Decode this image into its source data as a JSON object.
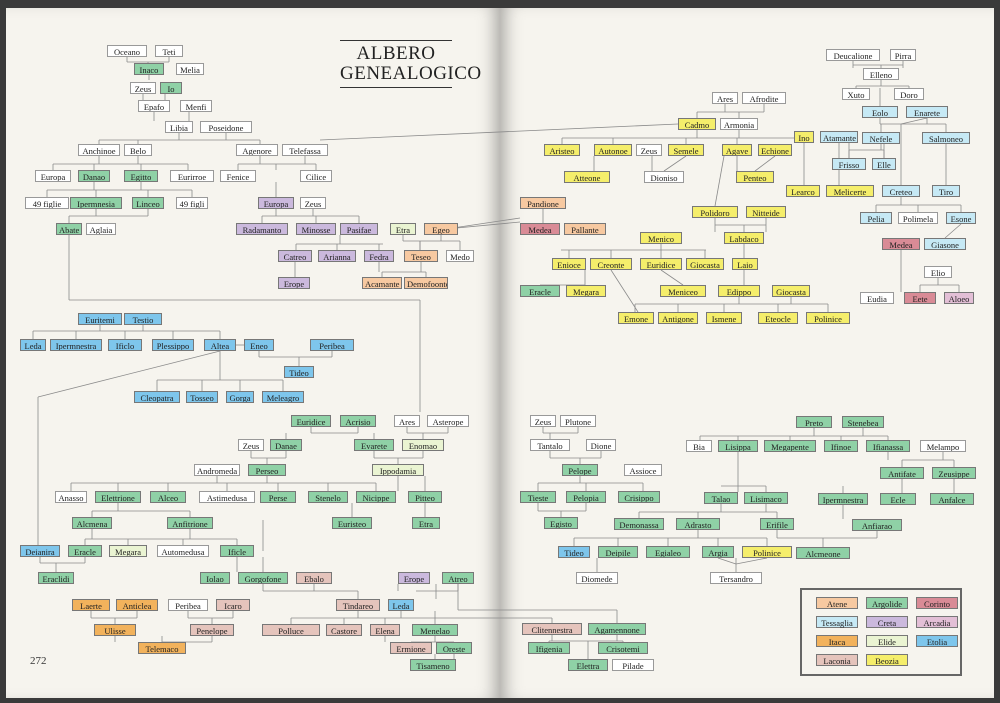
{
  "title_line1": "ALBERO",
  "title_line2": "GENEALOGICO",
  "page_number": "272",
  "colors": {
    "Atene": "#f7c9a1",
    "Argolide": "#8fd1a6",
    "Corinto": "#d98b96",
    "Tessaglia": "#c6e9f5",
    "Creta": "#cbb9dd",
    "Arcadia": "#e3bfd6",
    "Itaca": "#f2b25c",
    "Elide": "#eaf4d2",
    "Etolia": "#7ec6ec",
    "Laconia": "#e5c4bc",
    "Beozia": "#f5ee6b",
    "none": "#ffffff"
  },
  "legend": [
    {
      "label": "Atene",
      "region": "Atene"
    },
    {
      "label": "Argolide",
      "region": "Argolide"
    },
    {
      "label": "Corinto",
      "region": "Corinto"
    },
    {
      "label": "Tessaglia",
      "region": "Tessaglia"
    },
    {
      "label": "Creta",
      "region": "Creta"
    },
    {
      "label": "Arcadia",
      "region": "Arcadia"
    },
    {
      "label": "Itaca",
      "region": "Itaca"
    },
    {
      "label": "Elide",
      "region": "Elide"
    },
    {
      "label": "Etolia",
      "region": "Etolia"
    },
    {
      "label": "Laconia",
      "region": "Laconia"
    },
    {
      "label": "Beozia",
      "region": "Beozia"
    }
  ],
  "nodes": [
    {
      "id": "oceano",
      "label": "Oceano",
      "region": "none"
    },
    {
      "id": "teti",
      "label": "Teti",
      "region": "none"
    },
    {
      "id": "inaco",
      "label": "Inaco",
      "region": "Argolide"
    },
    {
      "id": "melia",
      "label": "Melia",
      "region": "none"
    },
    {
      "id": "zeus1",
      "label": "Zeus",
      "region": "none"
    },
    {
      "id": "io",
      "label": "Io",
      "region": "Argolide"
    },
    {
      "id": "epafo",
      "label": "Epafo",
      "region": "none"
    },
    {
      "id": "menfi",
      "label": "Menfi",
      "region": "none"
    },
    {
      "id": "libia",
      "label": "Libia",
      "region": "none"
    },
    {
      "id": "poseidone",
      "label": "Poseidone",
      "region": "none"
    },
    {
      "id": "anchinoe",
      "label": "Anchinoe",
      "region": "none"
    },
    {
      "id": "belo",
      "label": "Belo",
      "region": "none"
    },
    {
      "id": "agenore",
      "label": "Agenore",
      "region": "none"
    },
    {
      "id": "telefassa",
      "label": "Telefassa",
      "region": "none"
    },
    {
      "id": "europa1",
      "label": "Europa",
      "region": "none"
    },
    {
      "id": "danao",
      "label": "Danao",
      "region": "Argolide"
    },
    {
      "id": "egitto",
      "label": "Egitto",
      "region": "Argolide"
    },
    {
      "id": "eurirroe",
      "label": "Eurirroe",
      "region": "none"
    },
    {
      "id": "fenice",
      "label": "Fenice",
      "region": "none"
    },
    {
      "id": "cilice",
      "label": "Cilice",
      "region": "none"
    },
    {
      "id": "figlie49",
      "label": "49 figlie",
      "region": "none"
    },
    {
      "id": "ipermnesia",
      "label": "Ipermnesia",
      "region": "Argolide"
    },
    {
      "id": "linceo",
      "label": "Linceo",
      "region": "Argolide"
    },
    {
      "id": "figli49",
      "label": "49 figli",
      "region": "none"
    },
    {
      "id": "europa2",
      "label": "Europa",
      "region": "Creta"
    },
    {
      "id": "zeus2",
      "label": "Zeus",
      "region": "none"
    },
    {
      "id": "abate",
      "label": "Abate",
      "region": "Argolide"
    },
    {
      "id": "aglaia",
      "label": "Aglaia",
      "region": "none"
    },
    {
      "id": "radamanto",
      "label": "Radamanto",
      "region": "Creta"
    },
    {
      "id": "minosse",
      "label": "Minosse",
      "region": "Creta"
    },
    {
      "id": "pasifae",
      "label": "Pasifae",
      "region": "Creta"
    },
    {
      "id": "etra",
      "label": "Etra",
      "region": "Elide"
    },
    {
      "id": "egeo",
      "label": "Egeo",
      "region": "Atene"
    },
    {
      "id": "catreo",
      "label": "Catreo",
      "region": "Creta"
    },
    {
      "id": "arianna",
      "label": "Arianna",
      "region": "Creta"
    },
    {
      "id": "fedra",
      "label": "Fedra",
      "region": "Creta"
    },
    {
      "id": "teseo",
      "label": "Teseo",
      "region": "Atene"
    },
    {
      "id": "medo",
      "label": "Medo",
      "region": "none"
    },
    {
      "id": "erope1",
      "label": "Erope",
      "region": "Creta"
    },
    {
      "id": "acamante",
      "label": "Acamante",
      "region": "Atene"
    },
    {
      "id": "demofoonte",
      "label": "Demofoonte",
      "region": "Atene"
    },
    {
      "id": "euritemi",
      "label": "Euritemi",
      "region": "Etolia"
    },
    {
      "id": "testio",
      "label": "Testio",
      "region": "Etolia"
    },
    {
      "id": "leda1",
      "label": "Leda",
      "region": "Etolia"
    },
    {
      "id": "ipermnestra1",
      "label": "Ipermnestra",
      "region": "Etolia"
    },
    {
      "id": "ificlo",
      "label": "Ificlo",
      "region": "Etolia"
    },
    {
      "id": "plessippo",
      "label": "Plessippo",
      "region": "Etolia"
    },
    {
      "id": "altea",
      "label": "Altea",
      "region": "Etolia"
    },
    {
      "id": "eneo",
      "label": "Eneo",
      "region": "Etolia"
    },
    {
      "id": "peribea1",
      "label": "Peribea",
      "region": "Etolia"
    },
    {
      "id": "tideo1",
      "label": "Tideo",
      "region": "Etolia"
    },
    {
      "id": "cleopatra",
      "label": "Cleopatra",
      "region": "Etolia"
    },
    {
      "id": "tosseo",
      "label": "Tosseo",
      "region": "Etolia"
    },
    {
      "id": "gorga",
      "label": "Gorga",
      "region": "Etolia"
    },
    {
      "id": "meleagro",
      "label": "Meleagro",
      "region": "Etolia"
    },
    {
      "id": "euridice1",
      "label": "Euridice",
      "region": "Argolide"
    },
    {
      "id": "acrisio",
      "label": "Acrisio",
      "region": "Argolide"
    },
    {
      "id": "ares2",
      "label": "Ares",
      "region": "none"
    },
    {
      "id": "asterope",
      "label": "Asterope",
      "region": "none"
    },
    {
      "id": "zeus3",
      "label": "Zeus",
      "region": "none"
    },
    {
      "id": "danae",
      "label": "Danae",
      "region": "Argolide"
    },
    {
      "id": "evarete",
      "label": "Evarete",
      "region": "Argolide"
    },
    {
      "id": "enomao",
      "label": "Enomao",
      "region": "Elide"
    },
    {
      "id": "andromeda",
      "label": "Andromeda",
      "region": "none"
    },
    {
      "id": "perseo",
      "label": "Perseo",
      "region": "Argolide"
    },
    {
      "id": "ippodamia",
      "label": "Ippodamia",
      "region": "Elide"
    },
    {
      "id": "anasso",
      "label": "Anasso",
      "region": "none"
    },
    {
      "id": "elettrione",
      "label": "Elettrione",
      "region": "Argolide"
    },
    {
      "id": "alceo",
      "label": "Alceo",
      "region": "Argolide"
    },
    {
      "id": "astimedusa",
      "label": "Astimedusa",
      "region": "none"
    },
    {
      "id": "perse",
      "label": "Perse",
      "region": "Argolide"
    },
    {
      "id": "stenelo",
      "label": "Stenelo",
      "region": "Argolide"
    },
    {
      "id": "nicippe",
      "label": "Nicippe",
      "region": "Argolide"
    },
    {
      "id": "pitteo",
      "label": "Pitteo",
      "region": "Argolide"
    },
    {
      "id": "alcmena",
      "label": "Alcmena",
      "region": "Argolide"
    },
    {
      "id": "anfitrione",
      "label": "Anfitrione",
      "region": "Argolide"
    },
    {
      "id": "euristeo",
      "label": "Euristeo",
      "region": "Argolide"
    },
    {
      "id": "etra2",
      "label": "Etra",
      "region": "Argolide"
    },
    {
      "id": "deianira",
      "label": "Deianira",
      "region": "Etolia"
    },
    {
      "id": "eracle1",
      "label": "Eracle",
      "region": "Argolide"
    },
    {
      "id": "megara1",
      "label": "Megara",
      "region": "Elide"
    },
    {
      "id": "automedusa",
      "label": "Automedusa",
      "region": "none"
    },
    {
      "id": "ificle",
      "label": "Ificle",
      "region": "Argolide"
    },
    {
      "id": "eraclidi",
      "label": "Eraclidi",
      "region": "Argolide"
    },
    {
      "id": "iolao",
      "label": "Iolao",
      "region": "Argolide"
    },
    {
      "id": "gorgofone",
      "label": "Gorgofone",
      "region": "Argolide"
    },
    {
      "id": "ebalo",
      "label": "Ebalo",
      "region": "Laconia"
    },
    {
      "id": "erope2",
      "label": "Erope",
      "region": "Creta"
    },
    {
      "id": "atreo",
      "label": "Atreo",
      "region": "Argolide"
    },
    {
      "id": "laerte",
      "label": "Laerte",
      "region": "Itaca"
    },
    {
      "id": "anticlea",
      "label": "Anticlea",
      "region": "Itaca"
    },
    {
      "id": "peribea2",
      "label": "Peribea",
      "region": "none"
    },
    {
      "id": "icaro",
      "label": "Icaro",
      "region": "Laconia"
    },
    {
      "id": "tindareo",
      "label": "Tindareo",
      "region": "Laconia"
    },
    {
      "id": "leda2",
      "label": "Leda",
      "region": "Etolia"
    },
    {
      "id": "ulisse",
      "label": "Ulisse",
      "region": "Itaca"
    },
    {
      "id": "penelope",
      "label": "Penelope",
      "region": "Laconia"
    },
    {
      "id": "polluce",
      "label": "Polluce",
      "region": "Laconia"
    },
    {
      "id": "castore",
      "label": "Castore",
      "region": "Laconia"
    },
    {
      "id": "elena",
      "label": "Elena",
      "region": "Laconia"
    },
    {
      "id": "menelao",
      "label": "Menelao",
      "region": "Argolide"
    },
    {
      "id": "telemaco",
      "label": "Telemaco",
      "region": "Itaca"
    },
    {
      "id": "ermione",
      "label": "Ermione",
      "region": "Laconia"
    },
    {
      "id": "oreste",
      "label": "Oreste",
      "region": "Argolide"
    },
    {
      "id": "tisameno",
      "label": "Tisameno",
      "region": "Argolide"
    },
    {
      "id": "clitennestra",
      "label": "Clitennestra",
      "region": "Laconia"
    },
    {
      "id": "agamennone",
      "label": "Agamennone",
      "region": "Argolide"
    },
    {
      "id": "ifigenia",
      "label": "Ifigenia",
      "region": "Argolide"
    },
    {
      "id": "crisotemi",
      "label": "Crisotemi",
      "region": "Argolide"
    },
    {
      "id": "elettra",
      "label": "Elettra",
      "region": "Argolide"
    },
    {
      "id": "pilade",
      "label": "Pilade",
      "region": "none"
    },
    {
      "id": "ares1",
      "label": "Ares",
      "region": "none"
    },
    {
      "id": "afrodite",
      "label": "Afrodite",
      "region": "none"
    },
    {
      "id": "cadmo",
      "label": "Cadmo",
      "region": "Beozia"
    },
    {
      "id": "armonia",
      "label": "Armonia",
      "region": "none"
    },
    {
      "id": "aristeo",
      "label": "Aristeo",
      "region": "Beozia"
    },
    {
      "id": "autonoe",
      "label": "Autonoe",
      "region": "Beozia"
    },
    {
      "id": "zeus4",
      "label": "Zeus",
      "region": "none"
    },
    {
      "id": "semele",
      "label": "Semele",
      "region": "Beozia"
    },
    {
      "id": "agave",
      "label": "Agave",
      "region": "Beozia"
    },
    {
      "id": "echione",
      "label": "Echione",
      "region": "Beozia"
    },
    {
      "id": "ino",
      "label": "Ino",
      "region": "Beozia"
    },
    {
      "id": "atamante",
      "label": "Atamante",
      "region": "Tessaglia"
    },
    {
      "id": "atteone",
      "label": "Atteone",
      "region": "Beozia"
    },
    {
      "id": "dioniso",
      "label": "Dioniso",
      "region": "none"
    },
    {
      "id": "penteo",
      "label": "Penteo",
      "region": "Beozia"
    },
    {
      "id": "learco",
      "label": "Learco",
      "region": "Beozia"
    },
    {
      "id": "melicerte",
      "label": "Melicerte",
      "region": "Beozia"
    },
    {
      "id": "pandione",
      "label": "Pandione",
      "region": "Atene"
    },
    {
      "id": "polidoro",
      "label": "Polidoro",
      "region": "Beozia"
    },
    {
      "id": "nitteide",
      "label": "Nitteide",
      "region": "Beozia"
    },
    {
      "id": "medea1",
      "label": "Medea",
      "region": "Corinto"
    },
    {
      "id": "pallante",
      "label": "Pallante",
      "region": "Atene"
    },
    {
      "id": "labdaco",
      "label": "Labdaco",
      "region": "Beozia"
    },
    {
      "id": "menico",
      "label": "Menico",
      "region": "Beozia"
    },
    {
      "id": "enioce",
      "label": "Enioce",
      "region": "Beozia"
    },
    {
      "id": "creonte",
      "label": "Creonte",
      "region": "Beozia"
    },
    {
      "id": "euridice2",
      "label": "Euridice",
      "region": "Beozia"
    },
    {
      "id": "giocasta1",
      "label": "Giocasta",
      "region": "Beozia"
    },
    {
      "id": "laio",
      "label": "Laio",
      "region": "Beozia"
    },
    {
      "id": "eracle2",
      "label": "Eracle",
      "region": "Argolide"
    },
    {
      "id": "megara2",
      "label": "Megara",
      "region": "Beozia"
    },
    {
      "id": "meniceo",
      "label": "Meniceo",
      "region": "Beozia"
    },
    {
      "id": "edippo",
      "label": "Edippo",
      "region": "Beozia"
    },
    {
      "id": "giocasta2",
      "label": "Giocasta",
      "region": "Beozia"
    },
    {
      "id": "emone",
      "label": "Emone",
      "region": "Beozia"
    },
    {
      "id": "antigone",
      "label": "Antigone",
      "region": "Beozia"
    },
    {
      "id": "ismene",
      "label": "Ismene",
      "region": "Beozia"
    },
    {
      "id": "eteocle",
      "label": "Eteocle",
      "region": "Beozia"
    },
    {
      "id": "polinice1",
      "label": "Polinice",
      "region": "Beozia"
    },
    {
      "id": "deucalione",
      "label": "Deucalione",
      "region": "none"
    },
    {
      "id": "pirra",
      "label": "Pirra",
      "region": "none"
    },
    {
      "id": "elleno",
      "label": "Elleno",
      "region": "none"
    },
    {
      "id": "xuto",
      "label": "Xuto",
      "region": "none"
    },
    {
      "id": "doro",
      "label": "Doro",
      "region": "none"
    },
    {
      "id": "eolo",
      "label": "Eolo",
      "region": "Tessaglia"
    },
    {
      "id": "enarete",
      "label": "Enarete",
      "region": "Tessaglia"
    },
    {
      "id": "nefele",
      "label": "Nefele",
      "region": "Tessaglia"
    },
    {
      "id": "salmoneo",
      "label": "Salmoneo",
      "region": "Tessaglia"
    },
    {
      "id": "frisso",
      "label": "Frisso",
      "region": "Tessaglia"
    },
    {
      "id": "elle",
      "label": "Elle",
      "region": "Tessaglia"
    },
    {
      "id": "creteo",
      "label": "Creteo",
      "region": "Tessaglia"
    },
    {
      "id": "tiro",
      "label": "Tiro",
      "region": "Tessaglia"
    },
    {
      "id": "pelia",
      "label": "Pelia",
      "region": "Tessaglia"
    },
    {
      "id": "polimela",
      "label": "Polimela",
      "region": "none"
    },
    {
      "id": "esone",
      "label": "Esone",
      "region": "Tessaglia"
    },
    {
      "id": "medea2",
      "label": "Medea",
      "region": "Corinto"
    },
    {
      "id": "giasone",
      "label": "Giasone",
      "region": "Tessaglia"
    },
    {
      "id": "elio",
      "label": "Elio",
      "region": "none"
    },
    {
      "id": "eudia",
      "label": "Eudia",
      "region": "none"
    },
    {
      "id": "eete",
      "label": "Eete",
      "region": "Corinto"
    },
    {
      "id": "aloeo",
      "label": "Aloeo",
      "region": "Arcadia"
    },
    {
      "id": "zeus5",
      "label": "Zeus",
      "region": "none"
    },
    {
      "id": "plutone",
      "label": "Plutone",
      "region": "none"
    },
    {
      "id": "tantalo",
      "label": "Tantalo",
      "region": "none"
    },
    {
      "id": "dione",
      "label": "Dione",
      "region": "none"
    },
    {
      "id": "pelope",
      "label": "Pelope",
      "region": "Argolide"
    },
    {
      "id": "assioce",
      "label": "Assioce",
      "region": "none"
    },
    {
      "id": "tieste",
      "label": "Tieste",
      "region": "Argolide"
    },
    {
      "id": "pelopia",
      "label": "Pelopia",
      "region": "Argolide"
    },
    {
      "id": "crisippo",
      "label": "Crisippo",
      "region": "Argolide"
    },
    {
      "id": "egisto",
      "label": "Egisto",
      "region": "Argolide"
    },
    {
      "id": "preto",
      "label": "Preto",
      "region": "Argolide"
    },
    {
      "id": "stenebea",
      "label": "Stenebea",
      "region": "Argolide"
    },
    {
      "id": "bia",
      "label": "Bia",
      "region": "none"
    },
    {
      "id": "lisippa",
      "label": "Lisippa",
      "region": "Argolide"
    },
    {
      "id": "megapente",
      "label": "Megapente",
      "region": "Argolide"
    },
    {
      "id": "ifinoe",
      "label": "Ifinoe",
      "region": "Argolide"
    },
    {
      "id": "ifianassa",
      "label": "Ifianassa",
      "region": "Argolide"
    },
    {
      "id": "melampo",
      "label": "Melampo",
      "region": "none"
    },
    {
      "id": "antifate",
      "label": "Antifate",
      "region": "Argolide"
    },
    {
      "id": "zeusippe",
      "label": "Zeusippe",
      "region": "Argolide"
    },
    {
      "id": "talao",
      "label": "Talao",
      "region": "Argolide"
    },
    {
      "id": "lisimaco",
      "label": "Lisimaco",
      "region": "Argolide"
    },
    {
      "id": "ipermnestra2",
      "label": "Ipermnestra",
      "region": "Argolide"
    },
    {
      "id": "ecle",
      "label": "Ecle",
      "region": "Argolide"
    },
    {
      "id": "anfalce",
      "label": "Anfalce",
      "region": "Argolide"
    },
    {
      "id": "demonassa",
      "label": "Demonassa",
      "region": "Argolide"
    },
    {
      "id": "adrasto",
      "label": "Adrasto",
      "region": "Argolide"
    },
    {
      "id": "erifile",
      "label": "Erifile",
      "region": "Argolide"
    },
    {
      "id": "anfiarao",
      "label": "Anfiarao",
      "region": "Argolide"
    },
    {
      "id": "tideo2",
      "label": "Tideo",
      "region": "Etolia"
    },
    {
      "id": "deipile",
      "label": "Deipile",
      "region": "Argolide"
    },
    {
      "id": "egialeo",
      "label": "Egialeo",
      "region": "Argolide"
    },
    {
      "id": "argia",
      "label": "Argia",
      "region": "Argolide"
    },
    {
      "id": "polinice2",
      "label": "Polinice",
      "region": "Beozia"
    },
    {
      "id": "alcmeone",
      "label": "Alcmeone",
      "region": "Argolide"
    },
    {
      "id": "diomede",
      "label": "Diomede",
      "region": "none"
    },
    {
      "id": "tersandro",
      "label": "Tersandro",
      "region": "none"
    }
  ]
}
